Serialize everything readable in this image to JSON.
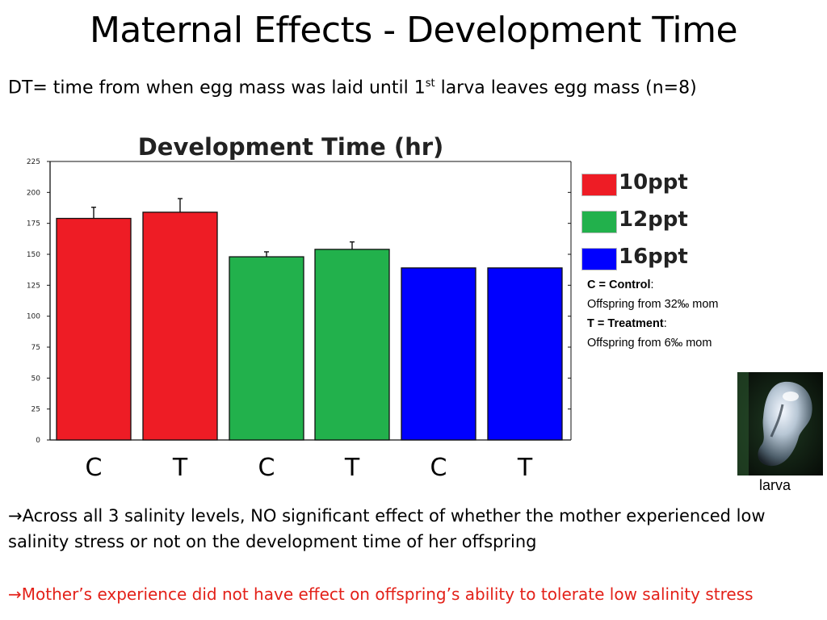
{
  "slide": {
    "title": "Maternal Effects - Development Time",
    "definition_pre": "DT= time from when egg mass was laid until 1",
    "definition_sup": "st",
    "definition_post": " larva leaves egg mass (n=8)",
    "larva_caption": "larva",
    "conclusion_arrow": "→",
    "conclusion1": "Across all 3 salinity levels, NO significant effect of whether the mother experienced low salinity stress or not on the development time of her offspring",
    "conclusion2": "Mother’s experience did not have effect on offspring’s ability to tolerate low salinity stress"
  },
  "notes": {
    "c_label": "C = Control",
    "c_desc": "Offspring from 32‰ mom",
    "t_label": "T = Treatment",
    "t_desc": "Offspring from 6‰ mom"
  },
  "chart_data": {
    "type": "bar",
    "title": "Development Time (hr)",
    "xlabel": "",
    "ylabel": "",
    "ylim": [
      0,
      225
    ],
    "yticks": [
      0,
      25,
      50,
      75,
      100,
      125,
      150,
      175,
      200,
      225
    ],
    "categories": [
      "C",
      "T",
      "C",
      "T",
      "C",
      "T"
    ],
    "values": [
      179,
      184,
      148,
      154,
      139,
      139
    ],
    "errors": [
      9,
      11,
      4,
      6,
      0,
      0
    ],
    "bar_groups": [
      "10ppt",
      "10ppt",
      "12ppt",
      "12ppt",
      "16ppt",
      "16ppt"
    ],
    "legend": [
      {
        "name": "10ppt",
        "color": "#ee1c25"
      },
      {
        "name": "12ppt",
        "color": "#22b14c"
      },
      {
        "name": "16ppt",
        "color": "#0000ff"
      }
    ],
    "grid": false,
    "legend_position": "right"
  }
}
